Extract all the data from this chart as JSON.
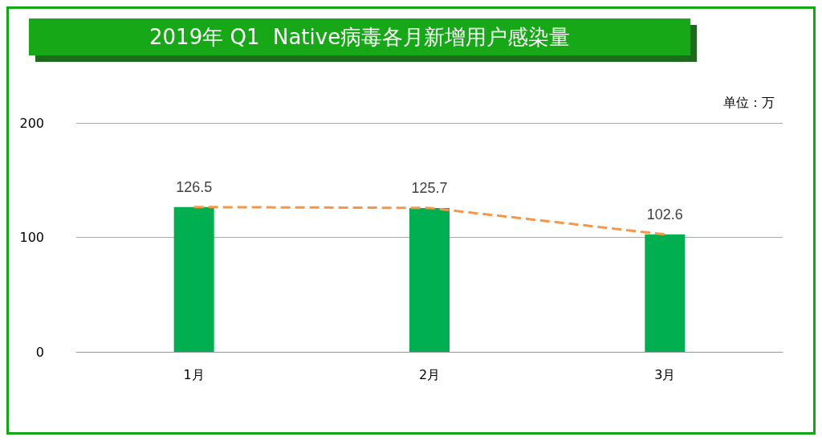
{
  "chart_data": {
    "type": "bar",
    "title": "2019年 Q1  Native病毒各月新增用户感染量",
    "ylabel": "单位：万",
    "categories": [
      "1月",
      "2月",
      "3月"
    ],
    "series": [
      {
        "color": "#00b050",
        "values": [
          126.5,
          125.7,
          102.6
        ],
        "value_labels": [
          "126.5",
          "125.7",
          "102.6"
        ]
      },
      {
        "type": "line",
        "color": "#f79646",
        "values": [
          126.5,
          125.7,
          102.6
        ],
        "marker": "none",
        "line_style": "dashed"
      }
    ],
    "ylim": [
      0,
      200
    ],
    "yticks": [
      0,
      100,
      200
    ],
    "grid": "y"
  }
}
